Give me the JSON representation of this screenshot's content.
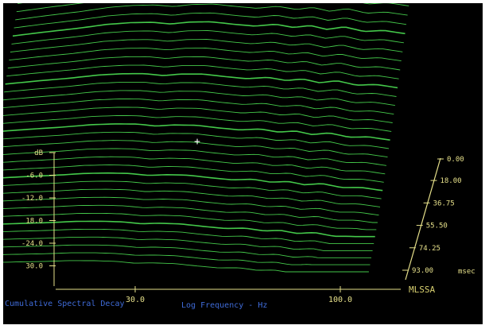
{
  "chart_data": {
    "type": "waterfall",
    "title": "Cumulative Spectral Decay",
    "xlabel": "Log Frequency - Hz",
    "x_scale": "log",
    "xlim": [
      15,
      150
    ],
    "x_ticks": [
      "30.0",
      "100.0"
    ],
    "ylabel": "dB",
    "y_ticks": [
      "dB",
      "-6.0",
      "-12.0",
      "18.0",
      "-24.0",
      "30.0"
    ],
    "ylim": [
      -36,
      0
    ],
    "z_label": "msec",
    "z_ticks": [
      "0.00",
      "18.00",
      "36.75",
      "55.50",
      "74.25",
      "93.00"
    ],
    "zlim": [
      0,
      93
    ],
    "slices": 36,
    "brand": "MLSSA",
    "grid": false,
    "colors": {
      "trace": "#44c84a",
      "axis": "#e6e08a",
      "background": "#000000",
      "title_text": "#3f6bd8",
      "brand_text": "#d8d070"
    },
    "series": [
      {
        "x": [
          15,
          18,
          22,
          26,
          30,
          34,
          38,
          42,
          48,
          55,
          62,
          70,
          78,
          86,
          95,
          105,
          118,
          132,
          150
        ],
        "values": [
          -12,
          -9,
          -6,
          -3,
          -1.5,
          -1,
          -2,
          -0.5,
          0,
          -1.5,
          -2.5,
          -1,
          -3,
          -1.5,
          -4,
          -2,
          -5,
          -4,
          -6
        ]
      }
    ]
  }
}
